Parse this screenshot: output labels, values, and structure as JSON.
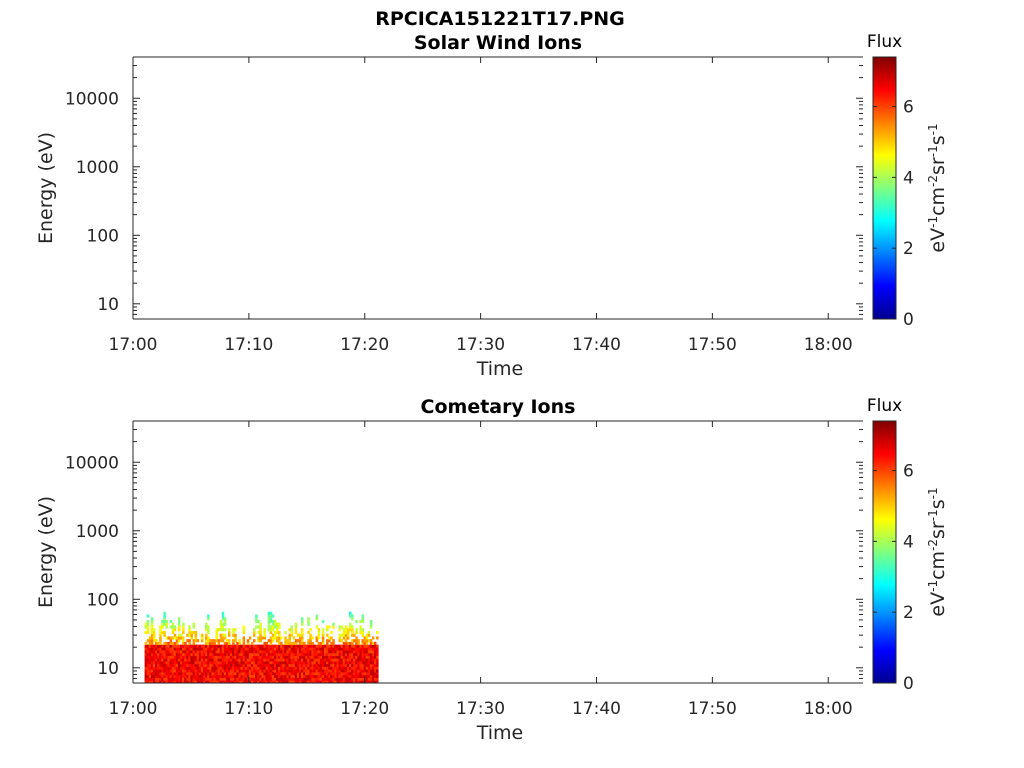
{
  "figure_title": "RPCICA151221T17.PNG",
  "colors": {
    "axis": "#262626",
    "colormap": [
      "#00008f",
      "#0000ff",
      "#0080ff",
      "#00ffff",
      "#80ff80",
      "#ffff00",
      "#ff8000",
      "#ff0000",
      "#800000"
    ]
  },
  "chart_data": [
    {
      "type": "heatmap",
      "title": "Solar Wind Ions",
      "xlabel": "Time",
      "ylabel": "Energy (eV)",
      "y_scale": "log",
      "xlim": [
        "17:00",
        "18:03"
      ],
      "ylim": [
        6,
        40000
      ],
      "x_ticks": [
        "17:00",
        "17:10",
        "17:20",
        "17:30",
        "17:40",
        "17:50",
        "18:00"
      ],
      "y_ticks": [
        "10",
        "100",
        "1000",
        "10000"
      ],
      "colorbar": {
        "title": "Flux",
        "label": "eV-1cm-2sr-1s-1",
        "range": [
          0,
          7.4
        ],
        "ticks": [
          "0",
          "2",
          "4",
          "6"
        ]
      },
      "data_present": false
    },
    {
      "type": "heatmap",
      "title": "Cometary Ions",
      "xlabel": "Time",
      "ylabel": "Energy (eV)",
      "y_scale": "log",
      "xlim": [
        "17:00",
        "18:03"
      ],
      "ylim": [
        6,
        40000
      ],
      "x_ticks": [
        "17:00",
        "17:10",
        "17:20",
        "17:30",
        "17:40",
        "17:50",
        "18:00"
      ],
      "y_ticks": [
        "10",
        "100",
        "1000",
        "10000"
      ],
      "colorbar": {
        "title": "Flux",
        "label": "eV-1cm-2sr-1s-1",
        "range": [
          0,
          7.4
        ],
        "ticks": [
          "0",
          "2",
          "4",
          "6"
        ]
      },
      "data_present": true,
      "data_time_range": [
        "17:01",
        "17:21"
      ],
      "data_energy_range_eV": [
        6,
        80
      ],
      "data_peak_energy_eV": [
        6,
        20
      ],
      "data_peak_flux": 7
    }
  ]
}
